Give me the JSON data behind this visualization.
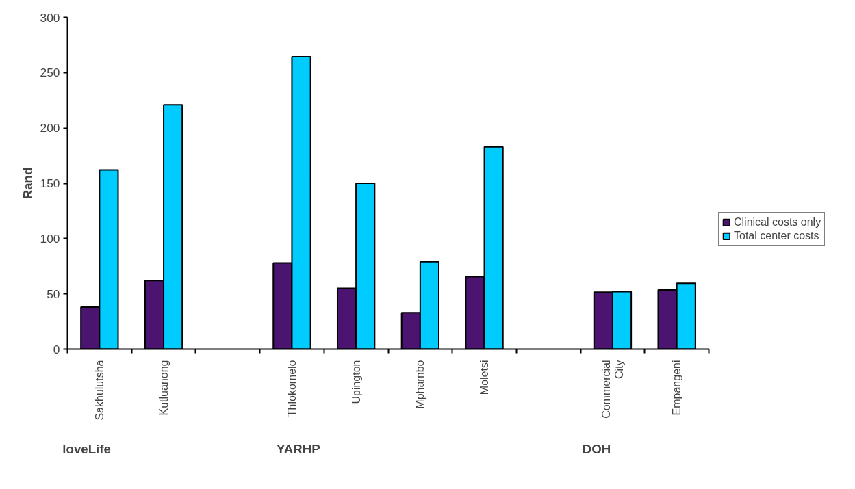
{
  "chart_data": {
    "type": "bar",
    "ylabel": "Rand",
    "categories": [
      "Sakhulutsha",
      "Kutluanong",
      null,
      "Thlokomelo",
      "Upington",
      "Mphambo",
      "Moletsi",
      null,
      "Commercial City",
      "Empangeni"
    ],
    "series": [
      {
        "name": "Clinical costs only",
        "color": "#4b1470",
        "values": [
          38,
          62,
          null,
          78,
          55,
          33,
          65.5,
          null,
          51.5,
          53.5
        ]
      },
      {
        "name": "Total center costs",
        "color": "#00ccff",
        "values": [
          162,
          221,
          null,
          264.5,
          150,
          79,
          183,
          null,
          52,
          59.5
        ]
      }
    ],
    "ylim": [
      0,
      300
    ],
    "yticks": [
      0,
      50,
      100,
      150,
      200,
      250,
      300
    ],
    "grid": false,
    "legend": "right",
    "annotations": [
      "loveLife",
      "YARHP",
      "DOH"
    ]
  }
}
